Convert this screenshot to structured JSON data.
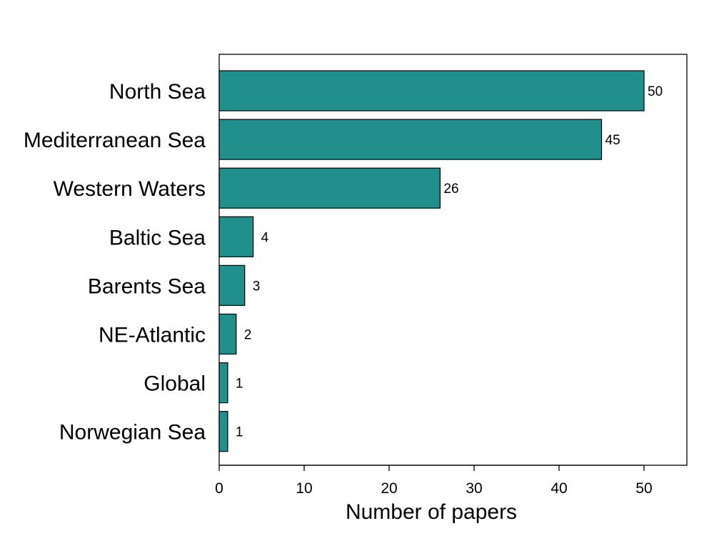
{
  "chart_data": {
    "type": "bar",
    "orientation": "horizontal",
    "categories": [
      "North Sea",
      "Mediterranean Sea",
      "Western Waters",
      "Baltic Sea",
      "Barents Sea",
      "NE-Atlantic",
      "Global",
      "Norwegian Sea"
    ],
    "values": [
      50,
      45,
      26,
      4,
      3,
      2,
      1,
      1
    ],
    "value_labels": [
      "50",
      "45",
      "26",
      "4",
      "3",
      "2",
      "1",
      "1"
    ],
    "title": "",
    "xlabel": "Number of papers",
    "ylabel": "",
    "xlim": [
      0,
      55
    ],
    "xticks": [
      0,
      10,
      20,
      30,
      40,
      50
    ],
    "xtick_labels": [
      "0",
      "10",
      "20",
      "30",
      "40",
      "50"
    ],
    "grid": false,
    "legend": "none",
    "colors": {
      "bar_fill": "#21908C",
      "bar_stroke": "#000000",
      "axis": "#000000"
    }
  }
}
